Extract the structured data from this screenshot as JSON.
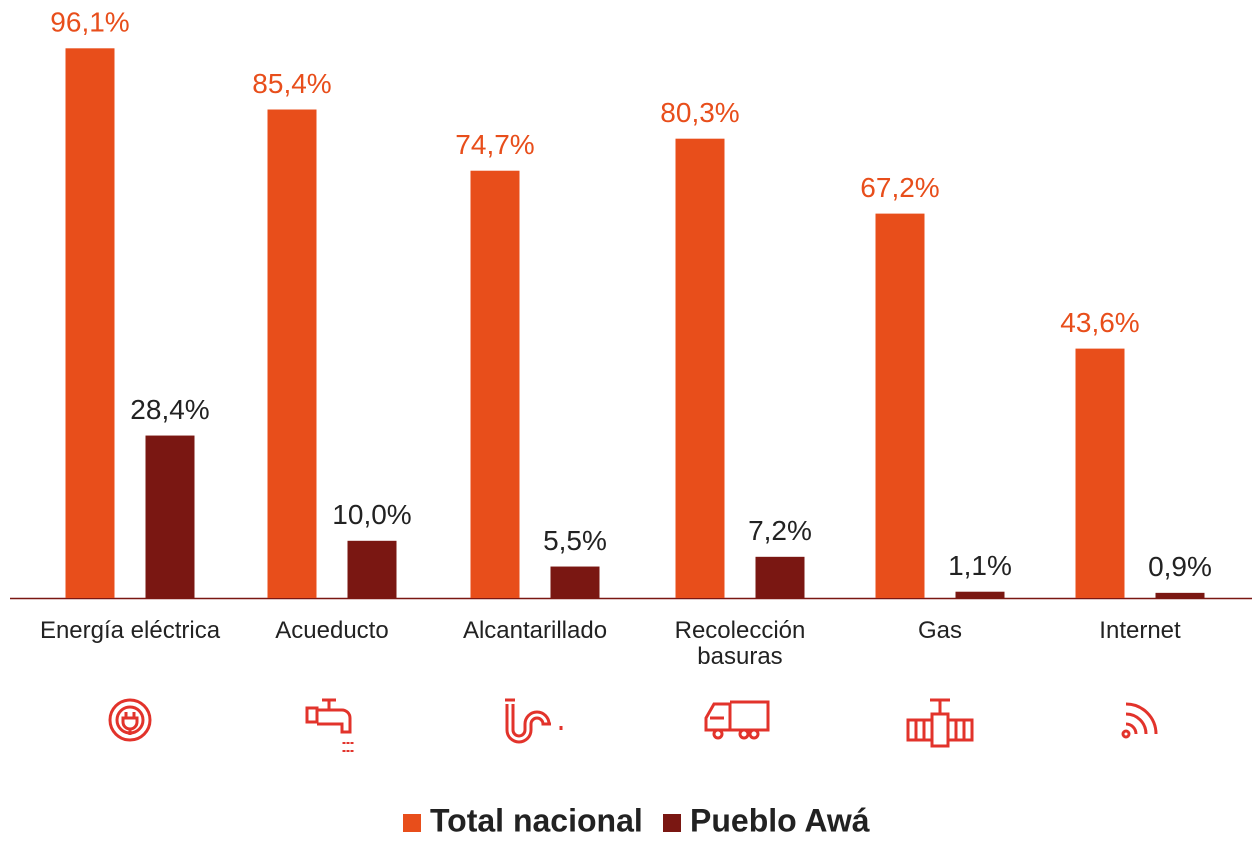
{
  "chart_data": {
    "type": "bar",
    "categories": [
      "Energía eléctrica",
      "Acueducto",
      "Alcantarillado",
      "Recolección basuras",
      "Gas",
      "Internet"
    ],
    "series": [
      {
        "name": "Total nacional",
        "color": "#e84e1b",
        "values": [
          96.1,
          85.4,
          74.7,
          80.3,
          67.2,
          43.6
        ],
        "value_labels": [
          "96,1%",
          "85,4%",
          "74,7%",
          "80,3%",
          "67,2%",
          "43,6%"
        ]
      },
      {
        "name": "Pueblo Awá",
        "color": "#7a1712",
        "values": [
          28.4,
          10.0,
          5.5,
          7.2,
          1.1,
          0.9
        ],
        "value_labels": [
          "28,4%",
          "10,0%",
          "5,5%",
          "7,2%",
          "1,1%",
          "0,9%"
        ]
      }
    ]
  }
}
